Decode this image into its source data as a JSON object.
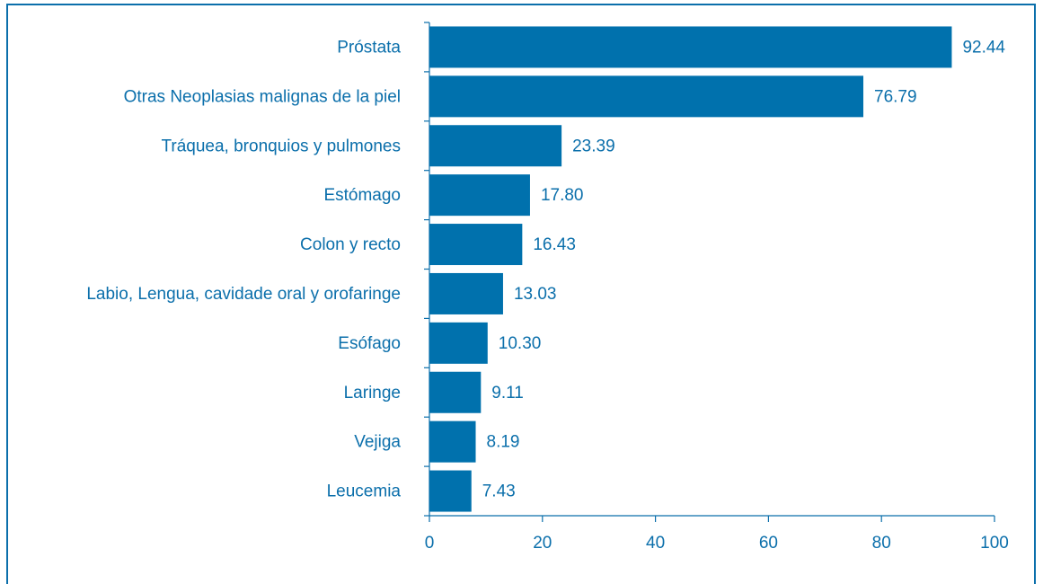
{
  "chart_data": {
    "type": "bar",
    "orientation": "horizontal",
    "categories": [
      "Próstata",
      "Otras Neoplasias malignas de la piel",
      "Tráquea, bronquios y pulmones",
      "Estómago",
      "Colon y recto",
      "Labio, Lengua, cavidade oral y orofaringe",
      "Esófago",
      "Laringe",
      "Vejiga",
      "Leucemia"
    ],
    "values": [
      92.44,
      76.79,
      23.39,
      17.8,
      16.43,
      13.03,
      10.3,
      9.11,
      8.19,
      7.43
    ],
    "value_labels": [
      "92.44",
      "76.79",
      "23.39",
      "17.80",
      "16.43",
      "13.03",
      "10.30",
      "9.11",
      "8.19",
      "7.43"
    ],
    "color": "#0071ad",
    "xlim": [
      0,
      100
    ],
    "xticks": [
      0,
      20,
      40,
      60,
      80,
      100
    ]
  }
}
